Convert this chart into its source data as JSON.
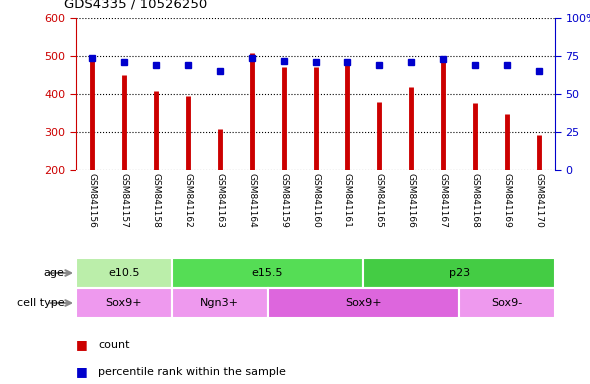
{
  "title": "GDS4335 / 10526250",
  "samples": [
    "GSM841156",
    "GSM841157",
    "GSM841158",
    "GSM841162",
    "GSM841163",
    "GSM841164",
    "GSM841159",
    "GSM841160",
    "GSM841161",
    "GSM841165",
    "GSM841166",
    "GSM841167",
    "GSM841168",
    "GSM841169",
    "GSM841170"
  ],
  "counts": [
    500,
    450,
    407,
    395,
    307,
    508,
    470,
    470,
    483,
    378,
    418,
    500,
    375,
    347,
    293
  ],
  "percentile_ranks": [
    74,
    71,
    69,
    69,
    65,
    74,
    72,
    71,
    71,
    69,
    71,
    73,
    69,
    69,
    65
  ],
  "ymin": 200,
  "ymax": 600,
  "y_ticks": [
    200,
    300,
    400,
    500,
    600
  ],
  "y_right_ticks": [
    0,
    25,
    50,
    75,
    100
  ],
  "bar_color": "#cc0000",
  "dot_color": "#0000cc",
  "bg_color": "#ffffff",
  "xtick_bg_color": "#c8c8c8",
  "age_groups": [
    {
      "label": "e10.5",
      "start": 0,
      "end": 3,
      "color": "#bbeeaa"
    },
    {
      "label": "e15.5",
      "start": 3,
      "end": 9,
      "color": "#55dd55"
    },
    {
      "label": "p23",
      "start": 9,
      "end": 15,
      "color": "#44cc44"
    }
  ],
  "cell_type_groups": [
    {
      "label": "Sox9+",
      "start": 0,
      "end": 3,
      "color": "#ee99ee"
    },
    {
      "label": "Ngn3+",
      "start": 3,
      "end": 6,
      "color": "#ee99ee"
    },
    {
      "label": "Sox9+",
      "start": 6,
      "end": 12,
      "color": "#dd66dd"
    },
    {
      "label": "Sox9-",
      "start": 12,
      "end": 15,
      "color": "#ee99ee"
    }
  ],
  "legend_count_color": "#cc0000",
  "legend_dot_color": "#0000cc"
}
